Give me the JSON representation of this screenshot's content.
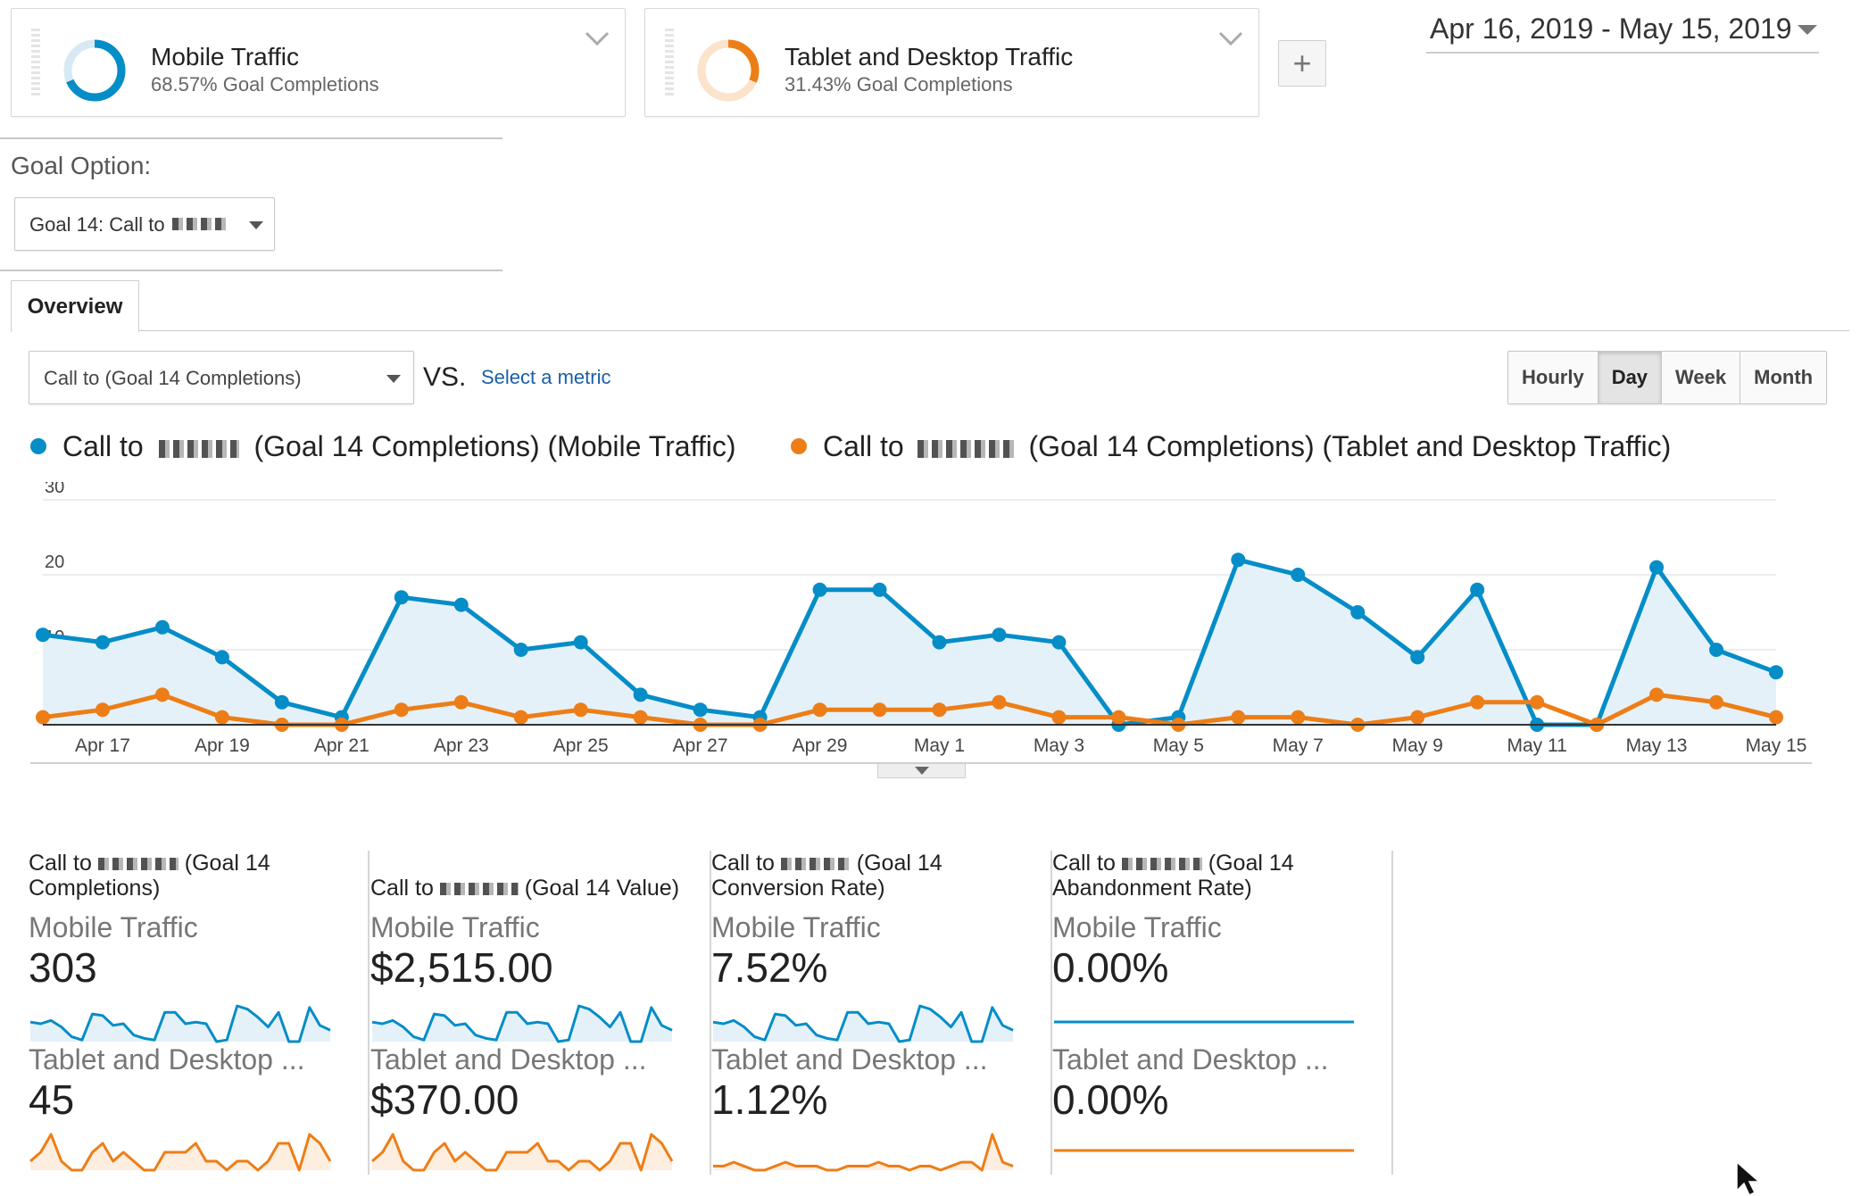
{
  "segments": [
    {
      "name": "Mobile Traffic",
      "subtitle": "68.57% Goal Completions",
      "share": 0.6857,
      "color": "#058dc7"
    },
    {
      "name": "Tablet and Desktop Traffic",
      "subtitle": "31.43% Goal Completions",
      "share": 0.3143,
      "color": "#ed7e17"
    }
  ],
  "add_segment_label": "+",
  "date_range": "Apr 16, 2019 - May 15, 2019",
  "goal_option": {
    "label": "Goal Option:",
    "selected": "Goal 14: Call to"
  },
  "tabs": {
    "overview": "Overview"
  },
  "metric_selector": {
    "selected": "Call to (Goal 14 Completions)",
    "vs": "VS.",
    "select_metric": "Select a metric"
  },
  "granularity": {
    "options": [
      "Hourly",
      "Day",
      "Week",
      "Month"
    ],
    "active": "Day"
  },
  "legend": [
    {
      "prefix": "Call to",
      "suffix": "(Goal 14 Completions) (Mobile Traffic)",
      "color": "#058dc7"
    },
    {
      "prefix": "Call to",
      "suffix": "(Goal 14 Completions) (Tablet and Desktop Traffic)",
      "color": "#ed7e17"
    }
  ],
  "chart_data": {
    "type": "line",
    "x": [
      "Apr 16",
      "Apr 17",
      "Apr 18",
      "Apr 19",
      "Apr 20",
      "Apr 21",
      "Apr 22",
      "Apr 23",
      "Apr 24",
      "Apr 25",
      "Apr 26",
      "Apr 27",
      "Apr 28",
      "Apr 29",
      "Apr 30",
      "May 1",
      "May 2",
      "May 3",
      "May 4",
      "May 5",
      "May 6",
      "May 7",
      "May 8",
      "May 9",
      "May 10",
      "May 11",
      "May 12",
      "May 13",
      "May 14",
      "May 15"
    ],
    "x_tick_labels": [
      "Apr 17",
      "Apr 19",
      "Apr 21",
      "Apr 23",
      "Apr 25",
      "Apr 27",
      "Apr 29",
      "May 1",
      "May 3",
      "May 5",
      "May 7",
      "May 9",
      "May 11",
      "May 13",
      "May 15"
    ],
    "y_ticks": [
      10,
      20,
      30
    ],
    "ylim": [
      0,
      30
    ],
    "series": [
      {
        "name": "Call to (Goal 14 Completions) (Mobile Traffic)",
        "color": "#058dc7",
        "fill": true,
        "values": [
          12,
          11,
          13,
          9,
          3,
          1,
          17,
          16,
          10,
          11,
          4,
          2,
          1,
          18,
          18,
          11,
          12,
          11,
          0,
          1,
          22,
          20,
          15,
          9,
          18,
          0,
          0,
          21,
          10,
          7
        ]
      },
      {
        "name": "Call to (Goal 14 Completions) (Tablet and Desktop Traffic)",
        "color": "#ed7e17",
        "fill": false,
        "values": [
          1,
          2,
          4,
          1,
          0,
          0,
          2,
          3,
          1,
          2,
          1,
          0,
          0,
          2,
          2,
          2,
          3,
          1,
          1,
          0,
          1,
          1,
          0,
          1,
          3,
          3,
          0,
          4,
          3,
          1
        ]
      }
    ]
  },
  "scorecards": [
    {
      "metric_prefix": "Call to",
      "metric_suffix": "(Goal 14 Completions)",
      "mobile_label": "Mobile Traffic",
      "mobile_value": "303",
      "other_label": "Tablet and Desktop ...",
      "other_value": "45",
      "mobile_spark": [
        12,
        11,
        13,
        9,
        3,
        1,
        17,
        16,
        10,
        11,
        4,
        2,
        1,
        18,
        18,
        11,
        12,
        11,
        0,
        1,
        22,
        20,
        15,
        9,
        18,
        0,
        0,
        21,
        10,
        7
      ],
      "other_spark": [
        1,
        2,
        4,
        1,
        0,
        0,
        2,
        3,
        1,
        2,
        1,
        0,
        0,
        2,
        2,
        2,
        3,
        1,
        1,
        0,
        1,
        1,
        0,
        1,
        3,
        3,
        0,
        4,
        3,
        1
      ]
    },
    {
      "metric_prefix": "Call to",
      "metric_suffix": "(Goal 14 Value)",
      "mobile_label": "Mobile Traffic",
      "mobile_value": "$2,515.00",
      "other_label": "Tablet and Desktop ...",
      "other_value": "$370.00",
      "mobile_spark": [
        12,
        11,
        13,
        9,
        3,
        1,
        17,
        16,
        10,
        11,
        4,
        2,
        1,
        18,
        18,
        11,
        12,
        11,
        0,
        1,
        22,
        20,
        15,
        9,
        18,
        0,
        0,
        21,
        10,
        7
      ],
      "other_spark": [
        1,
        2,
        4,
        1,
        0,
        0,
        2,
        3,
        1,
        2,
        1,
        0,
        0,
        2,
        2,
        2,
        3,
        1,
        1,
        0,
        1,
        1,
        0,
        1,
        3,
        3,
        0,
        4,
        3,
        1
      ]
    },
    {
      "metric_prefix": "Call to",
      "metric_suffix": "(Goal 14 Conversion Rate)",
      "mobile_label": "Mobile Traffic",
      "mobile_value": "7.52%",
      "other_label": "Tablet and Desktop ...",
      "other_value": "1.12%",
      "mobile_spark": [
        12,
        11,
        13,
        9,
        3,
        1,
        17,
        16,
        10,
        11,
        4,
        2,
        1,
        18,
        18,
        11,
        12,
        11,
        0,
        1,
        22,
        20,
        15,
        9,
        18,
        0,
        0,
        21,
        10,
        7
      ],
      "other_spark": [
        1,
        1,
        2,
        1,
        0,
        0,
        1,
        2,
        1,
        1,
        1,
        0,
        0,
        1,
        1,
        1,
        2,
        1,
        1,
        0,
        1,
        1,
        0,
        1,
        2,
        2,
        0,
        9,
        2,
        1
      ]
    },
    {
      "metric_prefix": "Call to",
      "metric_suffix": "(Goal 14 Abandonment Rate)",
      "mobile_label": "Mobile Traffic",
      "mobile_value": "0.00%",
      "other_label": "Tablet and Desktop ...",
      "other_value": "0.00%",
      "mobile_spark": [
        0,
        0,
        0,
        0,
        0,
        0,
        0,
        0,
        0,
        0,
        0,
        0,
        0,
        0,
        0,
        0,
        0,
        0,
        0,
        0,
        0,
        0,
        0,
        0,
        0,
        0,
        0,
        0,
        0,
        0
      ],
      "other_spark": [
        0,
        0,
        0,
        0,
        0,
        0,
        0,
        0,
        0,
        0,
        0,
        0,
        0,
        0,
        0,
        0,
        0,
        0,
        0,
        0,
        0,
        0,
        0,
        0,
        0,
        0,
        0,
        0,
        0,
        0
      ]
    }
  ]
}
